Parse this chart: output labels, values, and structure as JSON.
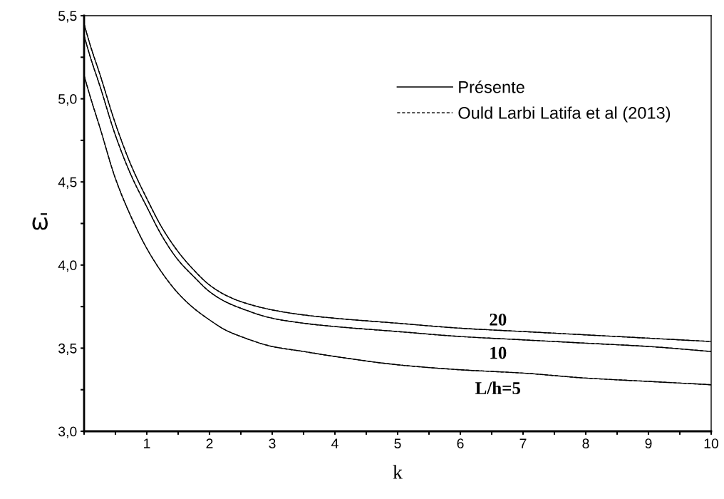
{
  "chart_data": {
    "type": "line",
    "xlabel": "k",
    "ylabel": "ω̄",
    "x": [
      0,
      0.1,
      0.25,
      0.5,
      0.75,
      1,
      1.25,
      1.5,
      1.75,
      2,
      2.25,
      2.5,
      3,
      3.5,
      4,
      5,
      6,
      7,
      8,
      9,
      10
    ],
    "series": [
      {
        "name": "Présente",
        "color": "#000000",
        "line_style": "solid",
        "values": [
          5.45,
          5.32,
          5.15,
          4.85,
          4.6,
          4.4,
          4.22,
          4.08,
          3.97,
          3.88,
          3.82,
          3.78,
          3.73,
          3.7,
          3.68,
          3.65,
          3.62,
          3.6,
          3.58,
          3.56,
          3.54
        ]
      },
      {
        "color": "#000000",
        "line_style": "solid",
        "values": [
          5.38,
          5.25,
          5.08,
          4.78,
          4.54,
          4.35,
          4.17,
          4.03,
          3.93,
          3.84,
          3.78,
          3.74,
          3.68,
          3.65,
          3.63,
          3.6,
          3.57,
          3.55,
          3.53,
          3.51,
          3.48
        ]
      },
      {
        "color": "#000000",
        "line_style": "solid",
        "values": [
          5.14,
          5.01,
          4.83,
          4.52,
          4.29,
          4.1,
          3.95,
          3.83,
          3.74,
          3.67,
          3.61,
          3.57,
          3.51,
          3.48,
          3.45,
          3.4,
          3.37,
          3.35,
          3.32,
          3.3,
          3.28
        ]
      },
      {
        "name": "Ould Larbi Latifa et al (2013)",
        "color": "#000000",
        "line_style": "dashed",
        "values": [
          5.45,
          5.32,
          5.15,
          4.85,
          4.6,
          4.4,
          4.22,
          4.08,
          3.97,
          3.88,
          3.82,
          3.78,
          3.73,
          3.7,
          3.68,
          3.65,
          3.62,
          3.6,
          3.58,
          3.56,
          3.54
        ]
      },
      {
        "color": "#000000",
        "line_style": "dashed",
        "values": [
          5.38,
          5.25,
          5.08,
          4.78,
          4.54,
          4.35,
          4.17,
          4.03,
          3.93,
          3.84,
          3.78,
          3.74,
          3.68,
          3.65,
          3.63,
          3.6,
          3.57,
          3.55,
          3.53,
          3.51,
          3.48
        ]
      },
      {
        "color": "#000000",
        "line_style": "dashed",
        "values": [
          5.14,
          5.01,
          4.83,
          4.52,
          4.29,
          4.1,
          3.95,
          3.83,
          3.74,
          3.67,
          3.61,
          3.57,
          3.51,
          3.48,
          3.45,
          3.4,
          3.37,
          3.35,
          3.32,
          3.3,
          3.28
        ]
      }
    ],
    "annotations": [
      "20",
      "10",
      "L/h=5"
    ],
    "xlim": [
      0,
      10
    ],
    "xticks": [
      {
        "value": 0,
        "label": null
      },
      {
        "value": 0.5,
        "label": null
      },
      1,
      {
        "value": 1.5,
        "label": null
      },
      2,
      {
        "value": 2.5,
        "label": null
      },
      3,
      {
        "value": 3.5,
        "label": null
      },
      4,
      {
        "value": 4.5,
        "label": null
      },
      5,
      {
        "value": 5.5,
        "label": null
      },
      6,
      {
        "value": 6.5,
        "label": null
      },
      7,
      {
        "value": 7.5,
        "label": null
      },
      8,
      {
        "value": 8.5,
        "label": null
      },
      9,
      {
        "value": 9.5,
        "label": null
      },
      10
    ],
    "ylim": [
      3.0,
      5.5
    ],
    "yticks": [
      {
        "value": 3.0,
        "label": "3,0"
      },
      {
        "value": 3.25,
        "label": null
      },
      {
        "value": 3.5,
        "label": "3,5"
      },
      {
        "value": 3.75,
        "label": null
      },
      {
        "value": 4.0,
        "label": "4,0"
      },
      {
        "value": 4.25,
        "label": null
      },
      {
        "value": 4.5,
        "label": "4,5"
      },
      {
        "value": 4.75,
        "label": null
      },
      {
        "value": 5.0,
        "label": "5,0"
      },
      {
        "value": 5.25,
        "label": null
      },
      {
        "value": 5.5,
        "label": "5,5"
      }
    ],
    "grid": false,
    "legend": "top right"
  }
}
